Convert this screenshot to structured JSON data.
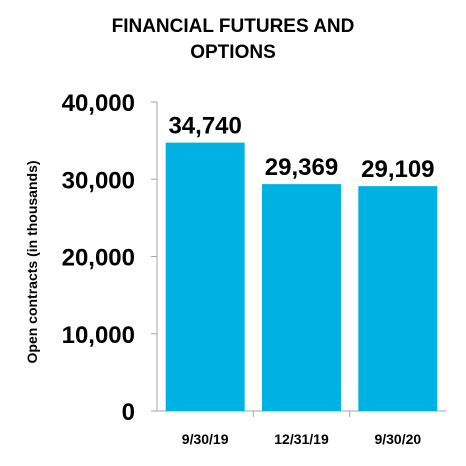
{
  "chart_data": {
    "type": "bar",
    "title_lines": [
      "FINANCIAL FUTURES AND",
      "OPTIONS"
    ],
    "ylabel": "Open contracts (in thousands)",
    "xlabel": "",
    "categories": [
      "9/30/19",
      "12/31/19",
      "9/30/20"
    ],
    "values": [
      34740,
      29369,
      29109
    ],
    "data_labels": [
      "34,740",
      "29,369",
      "29,109"
    ],
    "ylim": [
      0,
      40000
    ],
    "yticks": [
      0,
      10000,
      20000,
      30000,
      40000
    ],
    "ytick_labels": [
      "0",
      "10,000",
      "20,000",
      "30,000",
      "40,000"
    ],
    "grid": false,
    "legend": "none",
    "bar_color": "#00B2E3",
    "axis_color": "#A6A6A6"
  }
}
